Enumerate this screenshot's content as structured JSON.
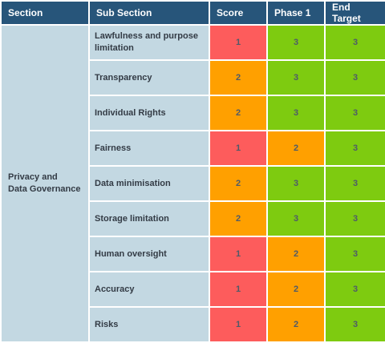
{
  "headers": {
    "section": "Section",
    "sub_section": "Sub Section",
    "score": "Score",
    "phase1": "Phase 1",
    "end_target": "End Target"
  },
  "section_name_line1": "Privacy and",
  "section_name_line2": "Data Governance",
  "rows": [
    {
      "sub": "Lawfulness and purpose limitation",
      "score": "1",
      "phase1": "3",
      "end": "3"
    },
    {
      "sub": "Transparency",
      "score": "2",
      "phase1": "3",
      "end": "3"
    },
    {
      "sub": "Individual Rights",
      "score": "2",
      "phase1": "3",
      "end": "3"
    },
    {
      "sub": "Fairness",
      "score": "1",
      "phase1": "2",
      "end": "3"
    },
    {
      "sub": "Data minimisation",
      "score": "2",
      "phase1": "3",
      "end": "3"
    },
    {
      "sub": "Storage limitation",
      "score": "2",
      "phase1": "3",
      "end": "3"
    },
    {
      "sub": "Human oversight",
      "score": "1",
      "phase1": "2",
      "end": "3"
    },
    {
      "sub": "Accuracy",
      "score": "1",
      "phase1": "2",
      "end": "3"
    },
    {
      "sub": "Risks",
      "score": "1",
      "phase1": "2",
      "end": "3"
    }
  ],
  "colors": {
    "header_bg": "#27557a",
    "cell_bg": "#c3d8e2",
    "level_1": "#fd5c5c",
    "level_2": "#ffa000",
    "level_3": "#7ecb10"
  }
}
